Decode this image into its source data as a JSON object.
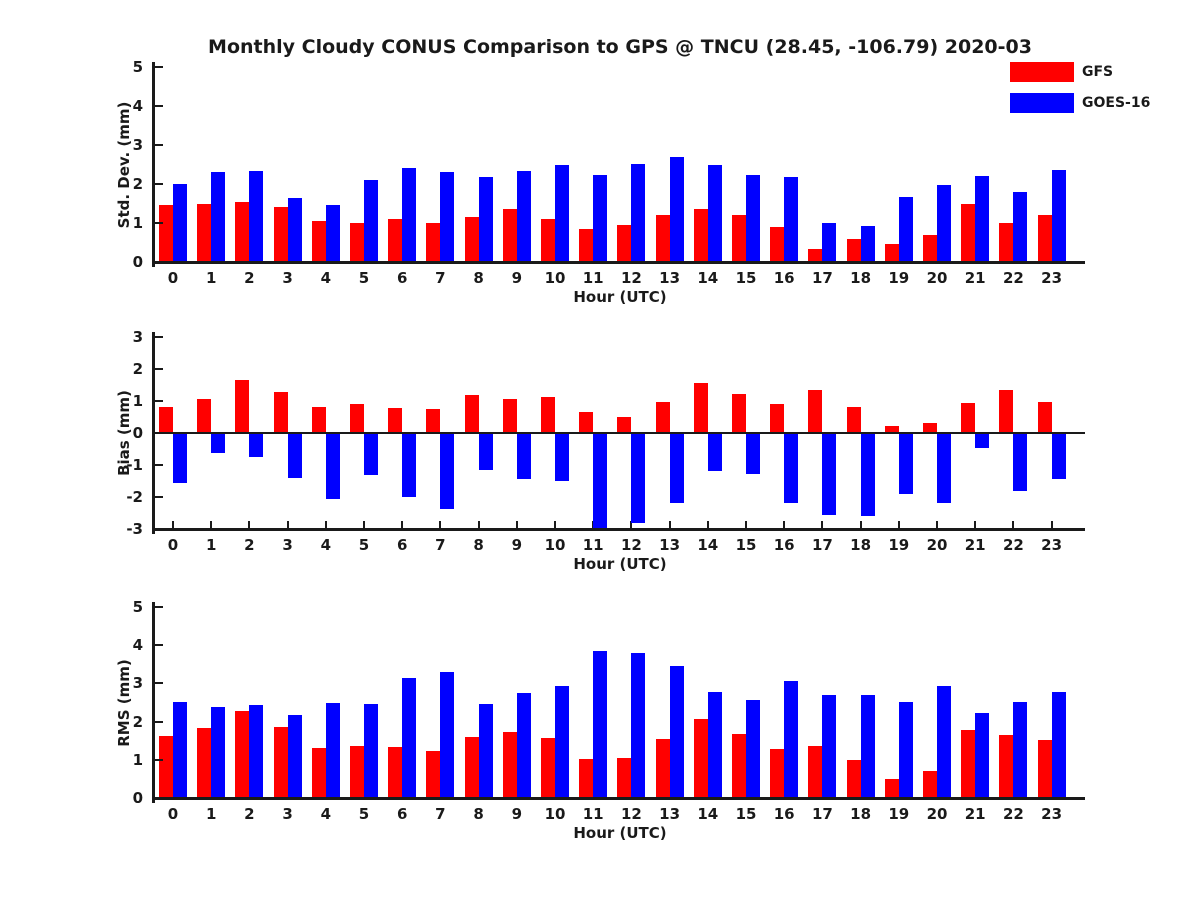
{
  "title": "Monthly Cloudy CONUS Comparison to GPS @ TNCU (28.45, -106.79) 2020-03",
  "legend": {
    "position": "top-right",
    "items": [
      {
        "label": "GFS",
        "color": "#ff0000"
      },
      {
        "label": "GOES-16",
        "color": "#0000ff"
      }
    ]
  },
  "chart_data": [
    {
      "type": "bar",
      "name": "std-dev",
      "ylabel": "Std. Dev. (mm)",
      "xlabel": "Hour (UTC)",
      "ylim": [
        0,
        5
      ],
      "yticks": [
        0,
        1,
        2,
        3,
        4,
        5
      ],
      "grid": false,
      "categories": [
        "0",
        "1",
        "2",
        "3",
        "4",
        "5",
        "6",
        "7",
        "8",
        "9",
        "10",
        "11",
        "12",
        "13",
        "14",
        "15",
        "16",
        "17",
        "18",
        "19",
        "20",
        "21",
        "22",
        "23"
      ],
      "series": [
        {
          "name": "GFS",
          "color": "#ff0000",
          "values": [
            1.45,
            1.5,
            1.55,
            1.4,
            1.05,
            1.0,
            1.1,
            1.0,
            1.15,
            1.35,
            1.1,
            0.85,
            0.95,
            1.2,
            1.35,
            1.2,
            0.9,
            0.33,
            0.58,
            0.47,
            0.68,
            1.5,
            1.0,
            1.2
          ]
        },
        {
          "name": "GOES-16",
          "color": "#0000ff",
          "values": [
            2.0,
            2.3,
            2.33,
            1.65,
            1.45,
            2.1,
            2.4,
            2.3,
            2.17,
            2.33,
            2.5,
            2.22,
            2.52,
            2.68,
            2.5,
            2.22,
            2.17,
            1.0,
            0.92,
            1.67,
            1.97,
            2.2,
            1.8,
            2.37
          ]
        }
      ]
    },
    {
      "type": "bar",
      "name": "bias",
      "ylabel": "Bias (mm)",
      "xlabel": "Hour (UTC)",
      "ylim": [
        -3,
        3
      ],
      "yticks": [
        3,
        2,
        1,
        0,
        -1,
        -2,
        -3
      ],
      "grid": false,
      "categories": [
        "0",
        "1",
        "2",
        "3",
        "4",
        "5",
        "6",
        "7",
        "8",
        "9",
        "10",
        "11",
        "12",
        "13",
        "14",
        "15",
        "16",
        "17",
        "18",
        "19",
        "20",
        "21",
        "22",
        "23"
      ],
      "series": [
        {
          "name": "GFS",
          "color": "#ff0000",
          "values": [
            0.8,
            1.05,
            1.65,
            1.27,
            0.82,
            0.9,
            0.78,
            0.75,
            1.18,
            1.07,
            1.11,
            0.65,
            0.5,
            0.98,
            1.57,
            1.21,
            0.9,
            1.33,
            0.8,
            0.22,
            0.3,
            0.93,
            1.33,
            0.97
          ]
        },
        {
          "name": "GOES-16",
          "color": "#0000ff",
          "values": [
            -1.55,
            -0.62,
            -0.75,
            -1.4,
            -2.05,
            -1.3,
            -2.0,
            -2.37,
            -1.15,
            -1.45,
            -1.5,
            -3.0,
            -2.82,
            -2.2,
            -1.2,
            -1.27,
            -2.2,
            -2.57,
            -2.6,
            -1.9,
            -2.2,
            -0.47,
            -1.8,
            -1.45
          ]
        }
      ]
    },
    {
      "type": "bar",
      "name": "rms",
      "ylabel": "RMS (mm)",
      "xlabel": "Hour (UTC)",
      "ylim": [
        0,
        5
      ],
      "yticks": [
        0,
        1,
        2,
        3,
        4,
        5
      ],
      "grid": false,
      "categories": [
        "0",
        "1",
        "2",
        "3",
        "4",
        "5",
        "6",
        "7",
        "8",
        "9",
        "10",
        "11",
        "12",
        "13",
        "14",
        "15",
        "16",
        "17",
        "18",
        "19",
        "20",
        "21",
        "22",
        "23"
      ],
      "series": [
        {
          "name": "GFS",
          "color": "#ff0000",
          "values": [
            1.63,
            1.83,
            2.29,
            1.86,
            1.3,
            1.35,
            1.33,
            1.22,
            1.6,
            1.73,
            1.57,
            1.02,
            1.04,
            1.55,
            2.06,
            1.68,
            1.28,
            1.35,
            0.99,
            0.5,
            0.7,
            1.77,
            1.65,
            1.53
          ]
        },
        {
          "name": "GOES-16",
          "color": "#0000ff",
          "values": [
            2.51,
            2.38,
            2.44,
            2.16,
            2.5,
            2.47,
            3.14,
            3.3,
            2.47,
            2.74,
            2.93,
            3.85,
            3.8,
            3.45,
            2.77,
            2.57,
            3.06,
            2.7,
            2.7,
            2.52,
            2.94,
            2.23,
            2.51,
            2.78
          ]
        }
      ]
    }
  ]
}
